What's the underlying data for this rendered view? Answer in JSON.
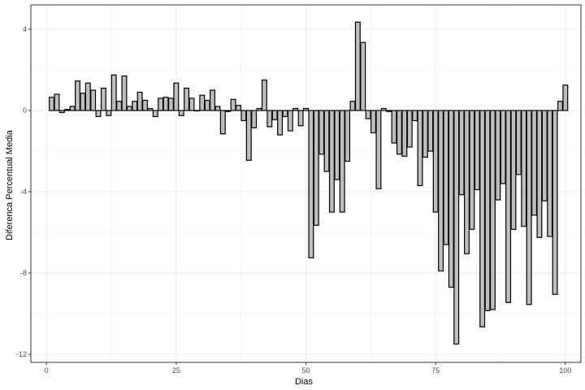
{
  "chart_data": {
    "type": "bar",
    "xlabel": "Dias",
    "ylabel": "Diferenca Percentual Media",
    "xlim": [
      -3,
      103
    ],
    "ylim": [
      -12.4,
      5.2
    ],
    "x_ticks": [
      0,
      25,
      50,
      75,
      100
    ],
    "y_ticks": [
      -12,
      -8,
      -4,
      0,
      4
    ],
    "grid": true,
    "legend": "none",
    "colors": {
      "bar_fill": "#bebebe",
      "bar_stroke": "#000000",
      "grid": "#ebebeb",
      "panel_border": "#333333"
    },
    "x": [
      1,
      2,
      3,
      4,
      5,
      6,
      7,
      8,
      9,
      10,
      11,
      12,
      13,
      14,
      15,
      16,
      17,
      18,
      19,
      20,
      21,
      22,
      23,
      24,
      25,
      26,
      27,
      28,
      29,
      30,
      31,
      32,
      33,
      34,
      35,
      36,
      37,
      38,
      39,
      40,
      41,
      42,
      43,
      44,
      45,
      46,
      47,
      48,
      49,
      50,
      51,
      52,
      53,
      54,
      55,
      56,
      57,
      58,
      59,
      60,
      61,
      62,
      63,
      64,
      65,
      66,
      67,
      68,
      69,
      70,
      71,
      72,
      73,
      74,
      75,
      76,
      77,
      78,
      79,
      80,
      81,
      82,
      83,
      84,
      85,
      86,
      87,
      88,
      89,
      90,
      91,
      92,
      93,
      94,
      95,
      96,
      97,
      98,
      99,
      100
    ],
    "values": [
      0.65,
      0.8,
      -0.1,
      0.05,
      0.2,
      1.45,
      0.85,
      1.35,
      1.0,
      -0.3,
      1.1,
      -0.25,
      1.75,
      0.45,
      1.7,
      0.2,
      0.45,
      0.9,
      0.5,
      0.1,
      -0.3,
      0.6,
      0.65,
      0.6,
      1.35,
      -0.25,
      1.1,
      0.6,
      0.0,
      0.75,
      0.5,
      1.0,
      0.2,
      -1.15,
      -0.05,
      0.55,
      0.25,
      -0.5,
      -2.45,
      -0.85,
      0.1,
      1.5,
      -0.8,
      -0.45,
      -1.2,
      -0.3,
      -1.0,
      0.1,
      -0.75,
      0.1,
      -7.25,
      -5.65,
      -2.15,
      -3.0,
      -5.0,
      -3.4,
      -5.0,
      -2.5,
      0.45,
      4.35,
      3.35,
      -0.4,
      -1.1,
      -3.85,
      0.1,
      -0.05,
      -1.6,
      -2.15,
      -2.25,
      -1.8,
      -0.5,
      -3.7,
      -2.3,
      -2.0,
      -5.0,
      -7.9,
      -6.6,
      -8.7,
      -11.5,
      -4.15,
      -7.05,
      -5.85,
      -3.9,
      -10.65,
      -9.85,
      -9.8,
      -4.4,
      -3.6,
      -9.45,
      -5.85,
      -3.15,
      -5.7,
      -9.55,
      -5.15,
      -6.25,
      -4.45,
      -6.2,
      -9.05,
      0.45,
      1.25
    ]
  }
}
